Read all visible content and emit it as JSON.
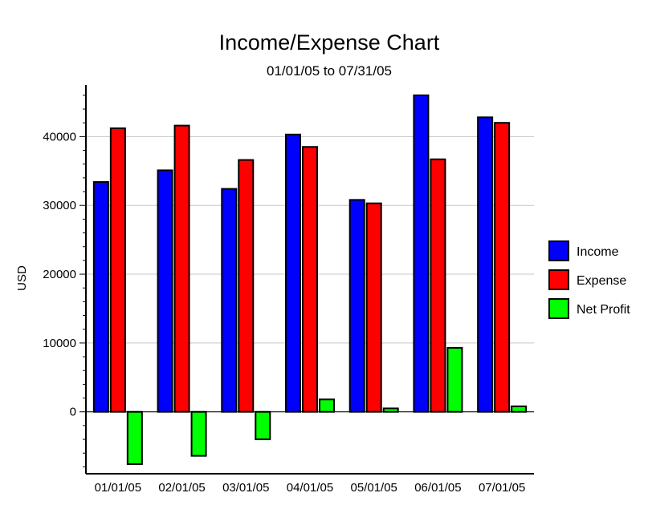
{
  "chart_data": {
    "type": "bar",
    "title": "Income/Expense Chart",
    "subtitle": "01/01/05 to 07/31/05",
    "ylabel": "USD",
    "xlabel": "",
    "ylim": [
      -9000,
      47500
    ],
    "yticks": [
      0,
      10000,
      20000,
      30000,
      40000
    ],
    "grid": true,
    "legend_position": "right",
    "categories": [
      "01/01/05",
      "02/01/05",
      "03/01/05",
      "04/01/05",
      "05/01/05",
      "06/01/05",
      "07/01/05"
    ],
    "series": [
      {
        "name": "Income",
        "color": "#0000ff",
        "values": [
          33400,
          35100,
          32400,
          40300,
          30800,
          46000,
          42800
        ]
      },
      {
        "name": "Expense",
        "color": "#ff0000",
        "values": [
          41200,
          41600,
          36600,
          38500,
          30300,
          36700,
          42000
        ]
      },
      {
        "name": "Net Profit",
        "color": "#00ff00",
        "values": [
          -7600,
          -6400,
          -4000,
          1800,
          500,
          9300,
          800
        ]
      }
    ]
  }
}
